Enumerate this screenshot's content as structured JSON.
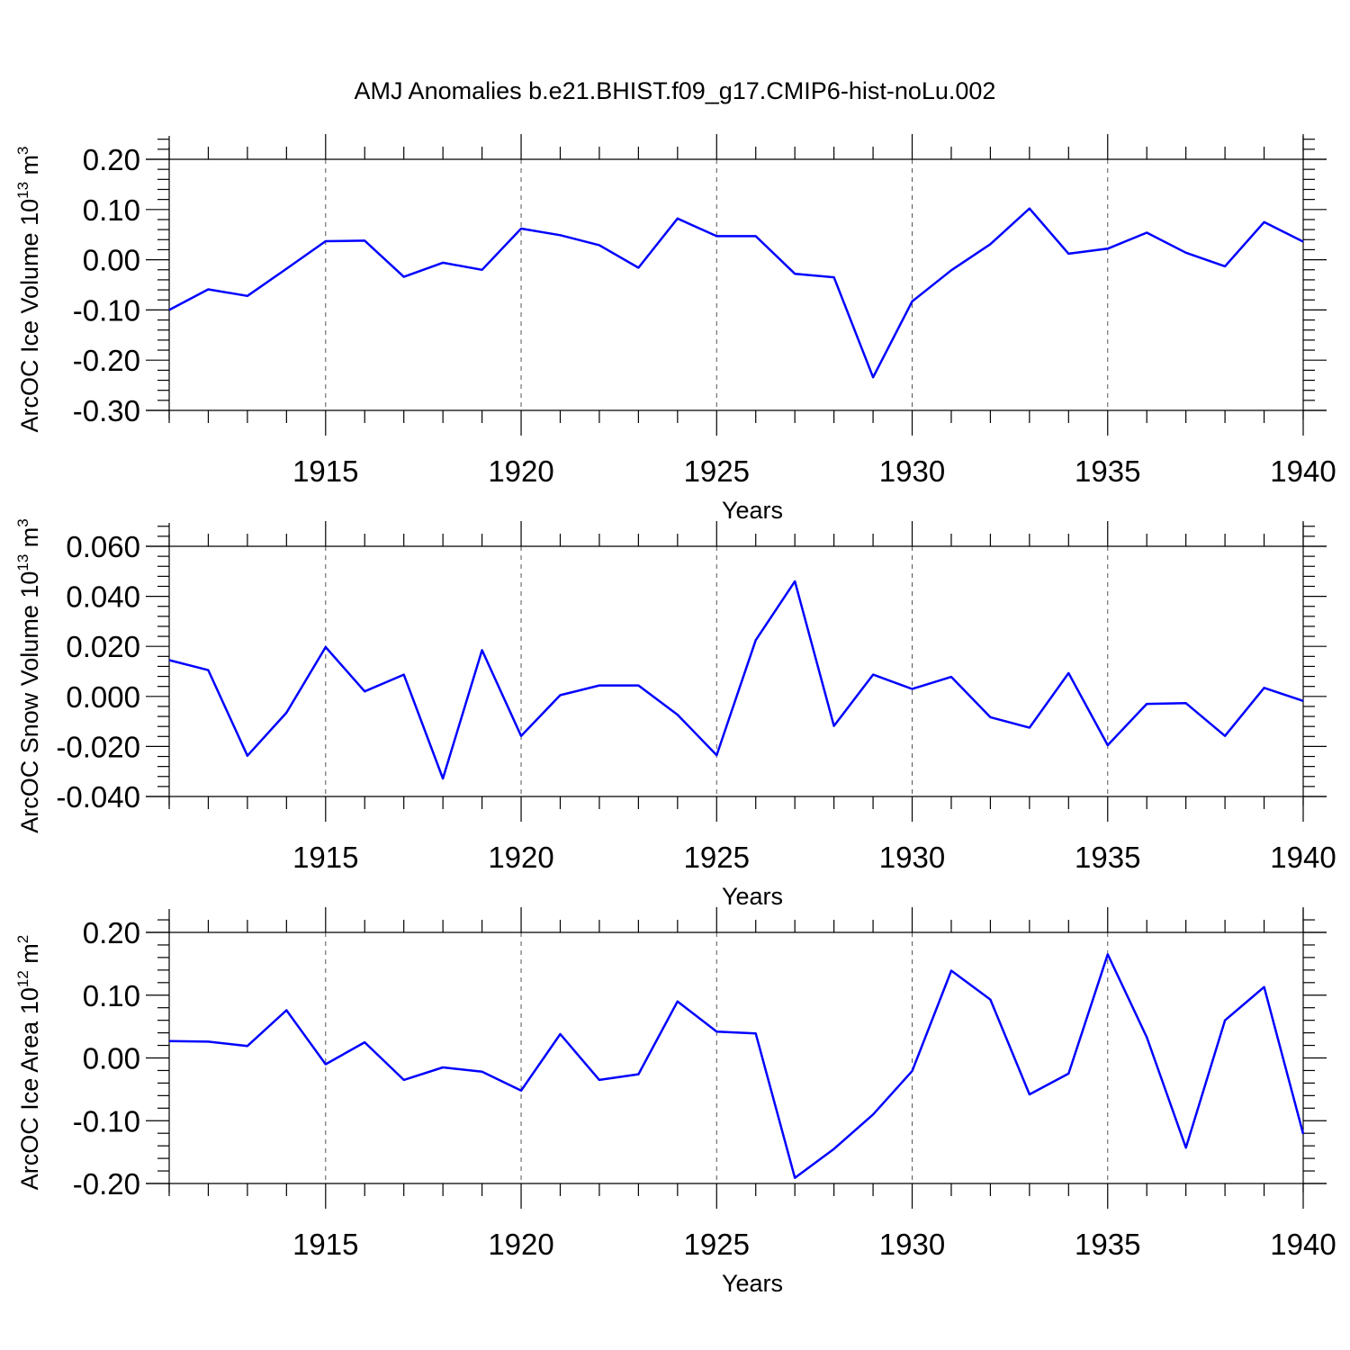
{
  "chart_data": {
    "title": "AMJ Anomalies b.e21.BHIST.f09_g17.CMIP6-hist-noLu.002",
    "x_years": [
      1911,
      1912,
      1913,
      1914,
      1915,
      1916,
      1917,
      1918,
      1919,
      1920,
      1921,
      1922,
      1923,
      1924,
      1925,
      1926,
      1927,
      1928,
      1929,
      1930,
      1931,
      1932,
      1933,
      1934,
      1935,
      1936,
      1937,
      1938,
      1939,
      1940
    ],
    "panels": [
      {
        "type": "line",
        "ylabel": "ArcOC Ice Volume 10",
        "ylabel_sup": "13",
        "ylabel_unit": " m",
        "ylabel_unit_sup": "3",
        "xlabel": "Years",
        "xlim": [
          1911,
          1940
        ],
        "ylim": [
          -0.3,
          0.25
        ],
        "xticks": [
          "1915",
          "1920",
          "1925",
          "1930",
          "1935",
          "1940"
        ],
        "yticks": [
          "0.20",
          "0.10",
          "0.00",
          "-0.10",
          "-0.20",
          "-0.30"
        ],
        "color": "#0000ff",
        "values": [
          -0.1,
          -0.059,
          -0.072,
          -0.018,
          0.037,
          0.038,
          -0.034,
          -0.006,
          -0.02,
          0.062,
          0.049,
          0.029,
          -0.016,
          0.082,
          0.047,
          0.047,
          -0.028,
          -0.035,
          -0.234,
          -0.083,
          -0.021,
          0.031,
          0.102,
          0.012,
          0.022,
          0.054,
          0.014,
          -0.013,
          0.075,
          0.036
        ]
      },
      {
        "type": "line",
        "ylabel": "ArcOC Snow Volume 10",
        "ylabel_sup": "13",
        "ylabel_unit": " m",
        "ylabel_unit_sup": "3",
        "xlabel": "Years",
        "xlim": [
          1911,
          1940
        ],
        "ylim": [
          -0.04,
          0.06
        ],
        "xticks": [
          "1915",
          "1920",
          "1925",
          "1930",
          "1935",
          "1940"
        ],
        "yticks": [
          "0.060",
          "0.040",
          "0.020",
          "0.000",
          "-0.020",
          "-0.040"
        ],
        "color": "#0000ff",
        "values": [
          0.0145,
          0.0105,
          -0.0237,
          -0.0065,
          0.0197,
          0.002,
          0.0087,
          -0.0328,
          0.0185,
          -0.0158,
          0.0005,
          0.0044,
          0.0044,
          -0.0073,
          -0.0235,
          0.0225,
          0.046,
          -0.0118,
          0.0087,
          0.003,
          0.0078,
          -0.0083,
          -0.0125,
          0.0093,
          -0.0195,
          -0.003,
          -0.0027,
          -0.0158,
          0.0034,
          -0.0018
        ]
      },
      {
        "type": "line",
        "ylabel": "ArcOC Ice Area 10",
        "ylabel_sup": "12",
        "ylabel_unit": " m",
        "ylabel_unit_sup": "2",
        "xlabel": "Years",
        "xlim": [
          1911,
          1940
        ],
        "ylim": [
          -0.2,
          0.2
        ],
        "xticks": [
          "1915",
          "1920",
          "1925",
          "1930",
          "1935",
          "1940"
        ],
        "yticks": [
          "0.20",
          "0.10",
          "0.00",
          "-0.10",
          "-0.20"
        ],
        "color": "#0000ff",
        "values": [
          0.027,
          0.026,
          0.019,
          0.076,
          -0.01,
          0.025,
          -0.035,
          -0.015,
          -0.022,
          -0.052,
          0.038,
          -0.035,
          -0.026,
          0.09,
          0.042,
          0.039,
          -0.191,
          -0.145,
          -0.09,
          -0.021,
          0.139,
          0.093,
          -0.058,
          -0.025,
          0.165,
          0.033,
          -0.143,
          0.06,
          0.113,
          -0.121
        ]
      }
    ]
  }
}
